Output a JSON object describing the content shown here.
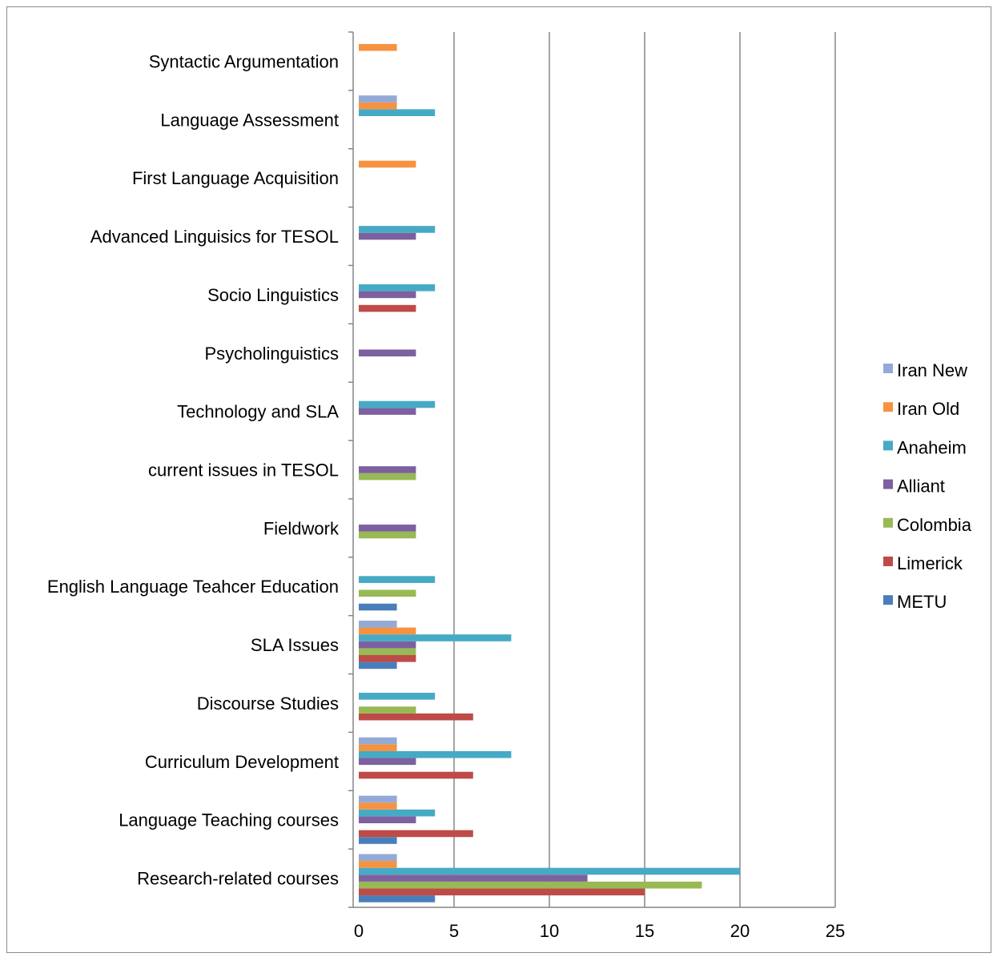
{
  "chart_data": {
    "type": "bar",
    "orientation": "horizontal",
    "categories": [
      "Research-related courses",
      "Language Teaching courses",
      "Curriculum Development",
      "Discourse Studies",
      "SLA Issues",
      "English Language Teahcer Education",
      "Fieldwork",
      "current issues in TESOL",
      "Technology and SLA",
      "Psycholinguistics",
      "Socio Linguistics",
      "Advanced Linguisics for TESOL",
      "First Language Acquisition",
      "Language Assessment",
      "Syntactic Argumentation"
    ],
    "series": [
      {
        "name": "METU",
        "color": "#4a7ebb",
        "values": [
          4,
          2,
          0,
          0,
          2,
          2,
          0,
          0,
          0,
          0,
          0,
          0,
          0,
          0,
          0
        ]
      },
      {
        "name": "Limerick",
        "color": "#be4b48",
        "values": [
          15,
          6,
          6,
          6,
          3,
          0,
          0,
          0,
          0,
          0,
          3,
          0,
          0,
          0,
          0
        ]
      },
      {
        "name": "Colombia",
        "color": "#98b954",
        "values": [
          18,
          0,
          0,
          3,
          3,
          3,
          3,
          3,
          0,
          0,
          0,
          0,
          0,
          0,
          0
        ]
      },
      {
        "name": "Alliant",
        "color": "#7d60a0",
        "values": [
          12,
          3,
          3,
          0,
          3,
          0,
          3,
          3,
          3,
          3,
          3,
          3,
          0,
          0,
          0
        ]
      },
      {
        "name": "Anaheim",
        "color": "#46aac5",
        "values": [
          20,
          4,
          8,
          4,
          8,
          4,
          0,
          0,
          4,
          0,
          4,
          4,
          0,
          4,
          0
        ]
      },
      {
        "name": "Iran Old",
        "color": "#f69240",
        "values": [
          2,
          2,
          2,
          0,
          3,
          0,
          0,
          0,
          0,
          0,
          0,
          0,
          3,
          2,
          2
        ]
      },
      {
        "name": "Iran New",
        "color": "#94aad6",
        "values": [
          2,
          2,
          2,
          0,
          2,
          0,
          0,
          0,
          0,
          0,
          0,
          0,
          0,
          2,
          0
        ]
      }
    ],
    "xlim": [
      0,
      25
    ],
    "xticks": [
      "0",
      "5",
      "10",
      "15",
      "20",
      "25"
    ],
    "grid": true,
    "legend_position": "right"
  }
}
